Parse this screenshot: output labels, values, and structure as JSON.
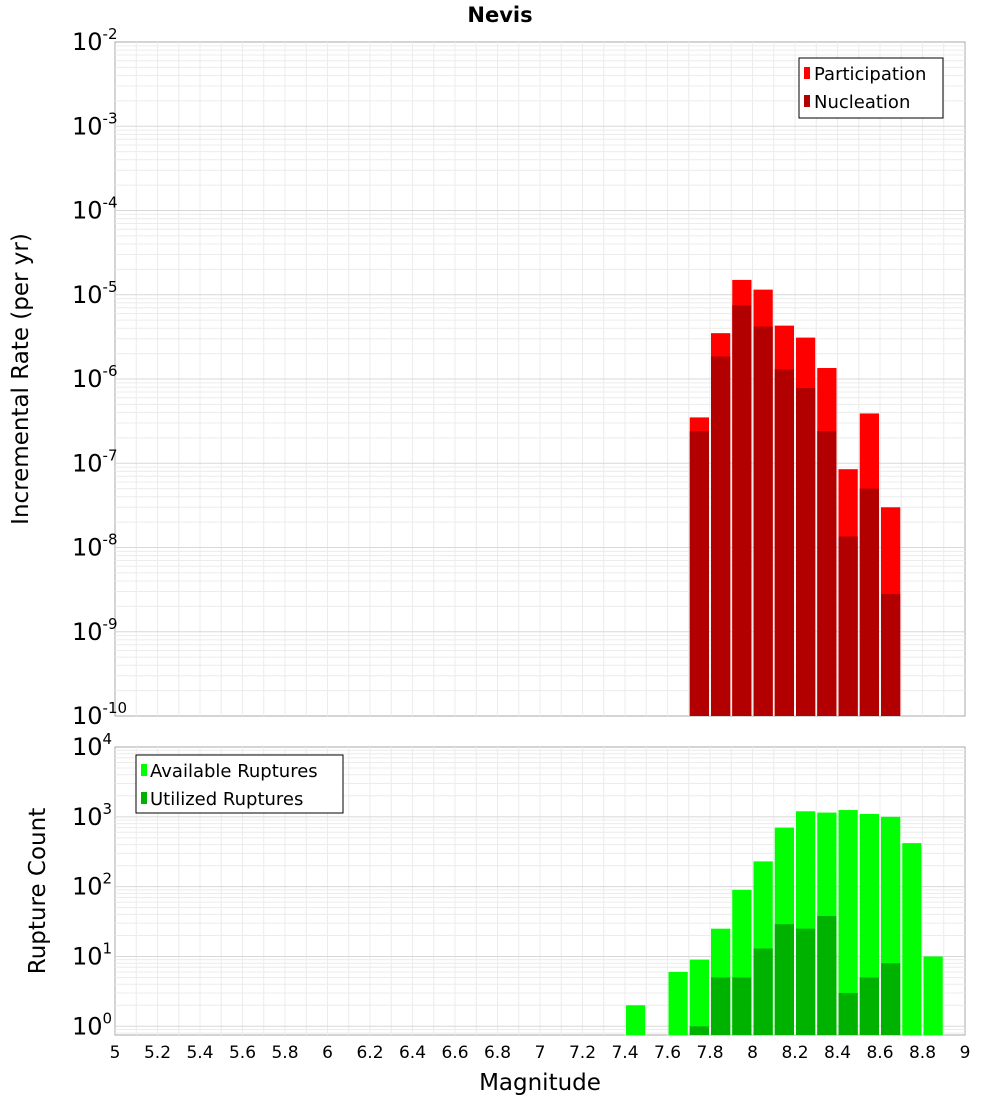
{
  "chart_data": [
    {
      "type": "bar",
      "id": "rate",
      "title": "Nevis",
      "xlabel": "",
      "ylabel": "Incremental Rate (per yr)",
      "yscale": "log",
      "ylim": [
        1e-10,
        0.01
      ],
      "xlim": [
        5,
        9
      ],
      "grid": true,
      "legend_position": "top-right",
      "y_ticks": [
        {
          "base": "10",
          "exp": "-10",
          "value": 1e-10
        },
        {
          "base": "10",
          "exp": "-9",
          "value": 1e-09
        },
        {
          "base": "10",
          "exp": "-8",
          "value": 1e-08
        },
        {
          "base": "10",
          "exp": "-7",
          "value": 1e-07
        },
        {
          "base": "10",
          "exp": "-6",
          "value": 1e-06
        },
        {
          "base": "10",
          "exp": "-5",
          "value": 1e-05
        },
        {
          "base": "10",
          "exp": "-4",
          "value": 0.0001
        },
        {
          "base": "10",
          "exp": "-3",
          "value": 0.001
        },
        {
          "base": "10",
          "exp": "-2",
          "value": 0.01
        }
      ],
      "bar_width": 0.1,
      "series": [
        {
          "name": "Participation",
          "color": "#ff0000",
          "x": [
            7.75,
            7.85,
            7.95,
            8.05,
            8.15,
            8.25,
            8.35,
            8.45,
            8.55,
            8.65
          ],
          "values": [
            3.5e-07,
            3.5e-06,
            1.5e-05,
            1.15e-05,
            4.3e-06,
            3.1e-06,
            1.35e-06,
            8.5e-08,
            3.9e-07,
            3e-08
          ]
        },
        {
          "name": "Nucleation",
          "color": "#b20000",
          "x": [
            7.75,
            7.85,
            7.95,
            8.05,
            8.15,
            8.25,
            8.35,
            8.45,
            8.55,
            8.65
          ],
          "values": [
            2.4e-07,
            1.85e-06,
            7.5e-06,
            4.2e-06,
            1.3e-06,
            7.8e-07,
            2.4e-07,
            1.35e-08,
            5e-08,
            2.8e-09
          ]
        }
      ]
    },
    {
      "type": "bar",
      "id": "count",
      "title": "",
      "xlabel": "Magnitude",
      "ylabel": "Rupture Count",
      "yscale": "log",
      "ylim": [
        0.75,
        10000
      ],
      "xlim": [
        5,
        9
      ],
      "grid": true,
      "legend_position": "top-left",
      "y_ticks": [
        {
          "base": "10",
          "exp": "0",
          "value": 1
        },
        {
          "base": "10",
          "exp": "1",
          "value": 10
        },
        {
          "base": "10",
          "exp": "2",
          "value": 100
        },
        {
          "base": "10",
          "exp": "3",
          "value": 1000
        },
        {
          "base": "10",
          "exp": "4",
          "value": 10000
        }
      ],
      "x_ticks": [
        "5",
        "5.2",
        "5.4",
        "5.6",
        "5.8",
        "6",
        "6.2",
        "6.4",
        "6.6",
        "6.8",
        "7",
        "7.2",
        "7.4",
        "7.6",
        "7.8",
        "8",
        "8.2",
        "8.4",
        "8.6",
        "8.8",
        "9"
      ],
      "bar_width": 0.1,
      "series": [
        {
          "name": "Available Ruptures",
          "color": "#00ff00",
          "x": [
            7.45,
            7.65,
            7.75,
            7.85,
            7.95,
            8.05,
            8.15,
            8.25,
            8.35,
            8.45,
            8.55,
            8.65,
            8.75,
            8.85
          ],
          "values": [
            2,
            6,
            9,
            25,
            90,
            230,
            700,
            1200,
            1150,
            1250,
            1100,
            1000,
            420,
            10
          ]
        },
        {
          "name": "Utilized Ruptures",
          "color": "#00b200",
          "x": [
            7.75,
            7.85,
            7.95,
            8.05,
            8.15,
            8.25,
            8.35,
            8.45,
            8.55,
            8.65
          ],
          "values": [
            1,
            5,
            5,
            13,
            29,
            25,
            38,
            3,
            5,
            8
          ]
        }
      ]
    }
  ]
}
